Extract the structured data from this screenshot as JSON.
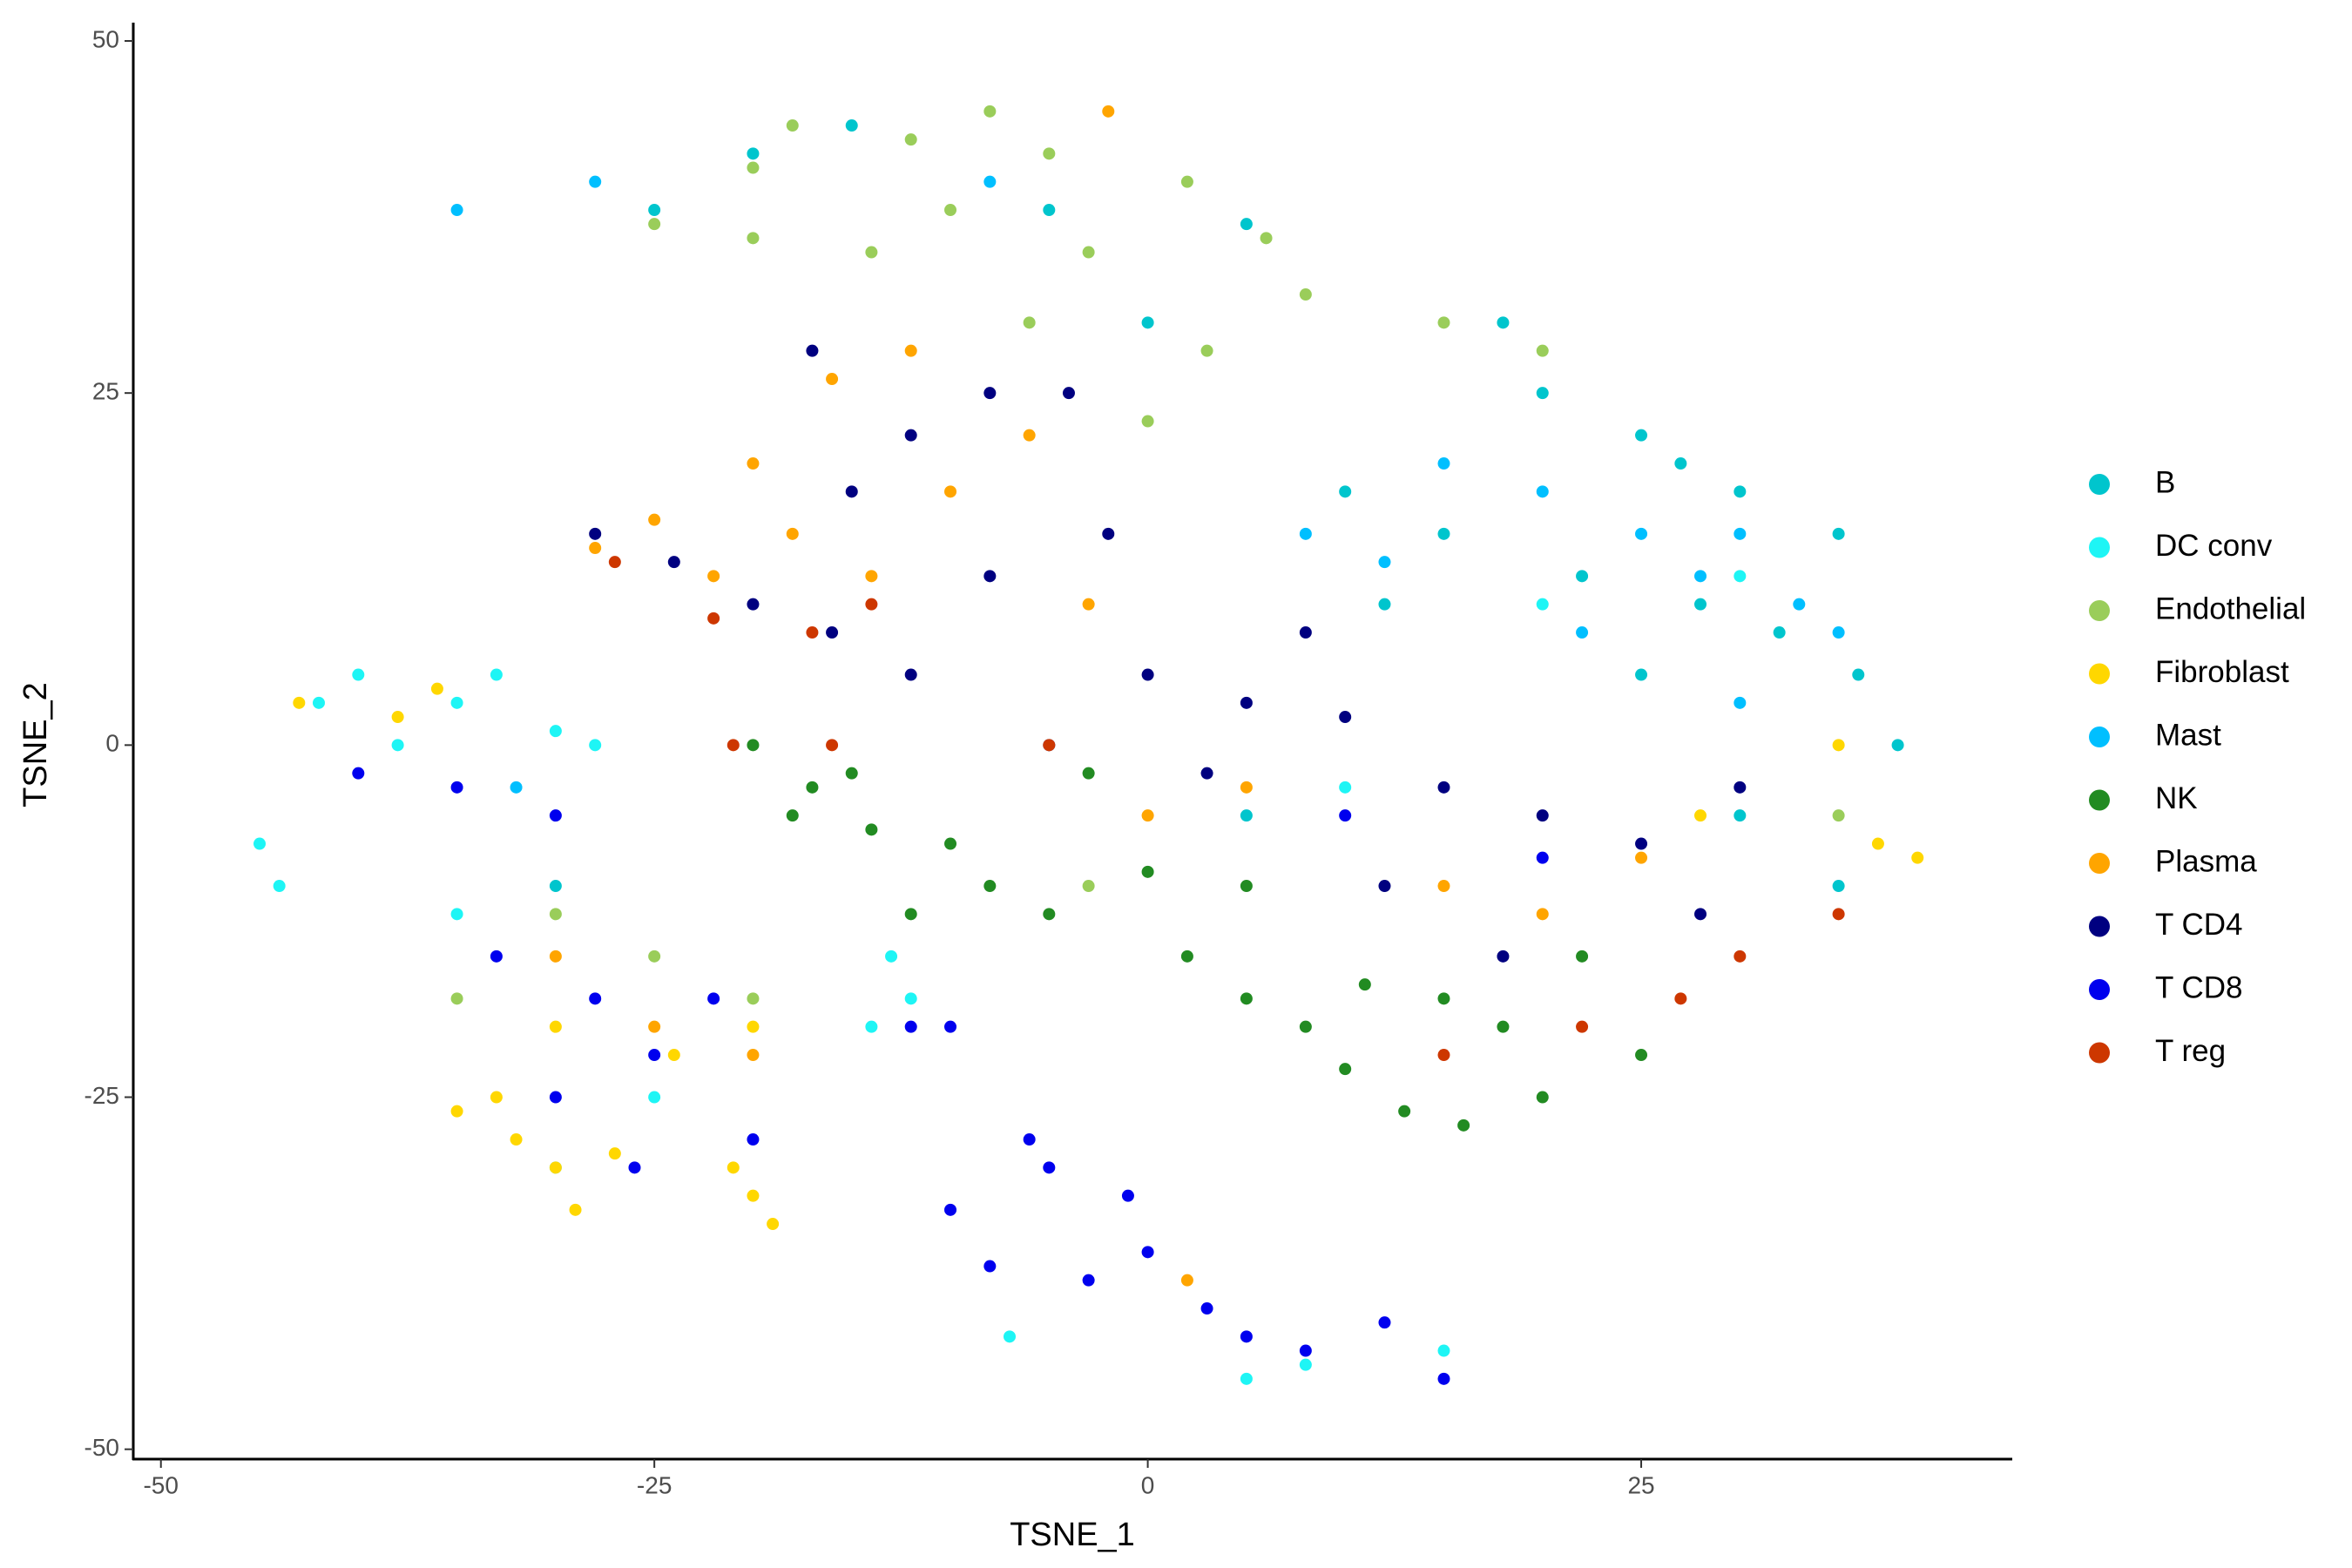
{
  "chart_data": {
    "type": "scatter",
    "x_label": "TSNE_1",
    "y_label": "TSNE_2",
    "xlim": [
      -51.4,
      43.8
    ],
    "ylim": [
      -50.7,
      51.3
    ],
    "xticks": [
      -50,
      -25,
      0,
      25
    ],
    "yticks": [
      -50,
      -25,
      0,
      25,
      50
    ],
    "grid": false,
    "legend": "right",
    "series": [
      {
        "name": "B",
        "color": "#00C5CD",
        "x": [
          20,
          25,
          30,
          35,
          28,
          22,
          15,
          10,
          32,
          36,
          38,
          27,
          18,
          12,
          25,
          -25,
          -20,
          -15,
          -5,
          5,
          0,
          35,
          -30,
          5,
          30
        ],
        "values": [
          25,
          22,
          18,
          15,
          10,
          12,
          15,
          18,
          8,
          5,
          0,
          20,
          30,
          10,
          5,
          38,
          42,
          44,
          38,
          37,
          30,
          -10,
          -10,
          -5,
          -5
        ]
      },
      {
        "name": "DC conv",
        "color": "#1EF5F5",
        "x": [
          -40,
          -35,
          -30,
          -38,
          -42,
          -33,
          -28,
          -45,
          -44,
          -13,
          -12,
          -14,
          -7,
          5,
          8,
          15,
          -25,
          -30,
          -35,
          20,
          30,
          10
        ],
        "values": [
          5,
          3,
          1,
          0,
          3,
          5,
          0,
          -7,
          -10,
          -15,
          -18,
          -20,
          -42,
          -45,
          -44,
          -43,
          -25,
          -30,
          -12,
          10,
          12,
          -3
        ]
      },
      {
        "name": "Endothelial",
        "color": "#9ACD5A",
        "x": [
          -25,
          -20,
          -18,
          -12,
          -8,
          -5,
          -10,
          -3,
          2,
          6,
          3,
          0,
          -6,
          -14,
          -20,
          8,
          15,
          20,
          -25,
          -20,
          -35,
          -30,
          35,
          -3
        ],
        "values": [
          37,
          41,
          44,
          43,
          45,
          42,
          38,
          35,
          40,
          36,
          28,
          23,
          30,
          35,
          36,
          32,
          30,
          28,
          -15,
          -18,
          -18,
          -12,
          -5,
          -10
        ]
      },
      {
        "name": "Fibroblast",
        "color": "#FFD700",
        "x": [
          -35,
          -32,
          -30,
          -29,
          -27,
          -33,
          -20,
          -19,
          -21,
          -24,
          -20,
          -38,
          -43,
          -36,
          -30,
          37,
          39,
          35,
          28
        ],
        "values": [
          -26,
          -28,
          -30,
          -33,
          -29,
          -25,
          -32,
          -34,
          -30,
          -22,
          -20,
          2,
          3,
          4,
          -20,
          -7,
          -8,
          0,
          -5
        ]
      },
      {
        "name": "Mast",
        "color": "#00BFFF",
        "x": [
          30,
          28,
          33,
          25,
          20,
          35,
          15,
          8,
          12,
          22,
          30,
          -28,
          -35,
          -8,
          -32
        ],
        "values": [
          15,
          12,
          10,
          15,
          18,
          8,
          20,
          15,
          13,
          8,
          3,
          40,
          38,
          40,
          -3
        ]
      },
      {
        "name": "NK",
        "color": "#228B22",
        "x": [
          -20,
          -17,
          -14,
          -10,
          -8,
          -5,
          -3,
          0,
          2,
          5,
          8,
          10,
          13,
          16,
          20,
          25,
          22,
          15,
          -15,
          -12,
          -18,
          5,
          18,
          11
        ],
        "values": [
          0,
          -3,
          -6,
          -7,
          -10,
          -12,
          -2,
          -9,
          -15,
          -18,
          -20,
          -23,
          -26,
          -27,
          -25,
          -22,
          -15,
          -18,
          -2,
          -12,
          -5,
          -10,
          -20,
          -17
        ]
      },
      {
        "name": "Plasma",
        "color": "#FFA500",
        "x": [
          -28,
          -25,
          -22,
          -18,
          -14,
          -10,
          -16,
          -20,
          -12,
          -6,
          -3,
          0,
          5,
          15,
          20,
          25,
          -30,
          -25,
          -20,
          2,
          -2
        ],
        "values": [
          14,
          16,
          12,
          15,
          12,
          18,
          26,
          20,
          28,
          22,
          10,
          -5,
          -3,
          -10,
          -12,
          -8,
          -15,
          -20,
          -22,
          -38,
          45
        ]
      },
      {
        "name": "T CD4",
        "color": "#000080",
        "x": [
          -28,
          -24,
          -20,
          -16,
          -12,
          -8,
          -15,
          -12,
          -17,
          -8,
          -4,
          -2,
          0,
          5,
          10,
          15,
          20,
          25,
          30,
          12,
          18,
          28,
          -5,
          3,
          8
        ],
        "values": [
          15,
          13,
          10,
          8,
          5,
          12,
          18,
          22,
          28,
          25,
          25,
          15,
          5,
          3,
          2,
          -3,
          -5,
          -7,
          -3,
          -10,
          -15,
          -12,
          0,
          -2,
          8
        ]
      },
      {
        "name": "T CD8",
        "color": "#0000EE",
        "x": [
          -40,
          -35,
          -30,
          -33,
          -28,
          -25,
          -30,
          -26,
          -20,
          -22,
          -10,
          -5,
          -3,
          0,
          3,
          5,
          8,
          12,
          15,
          -8,
          -6,
          -10,
          10,
          20,
          -1,
          -12
        ],
        "values": [
          -2,
          -3,
          -5,
          -15,
          -18,
          -22,
          -25,
          -30,
          -28,
          -18,
          -33,
          -30,
          -38,
          -36,
          -40,
          -42,
          -43,
          -41,
          -45,
          -37,
          -28,
          -20,
          -5,
          -8,
          -32,
          -20
        ]
      },
      {
        "name": "T reg",
        "color": "#CD3700",
        "x": [
          -27,
          -22,
          -17,
          -14,
          -21,
          -5,
          15,
          22,
          27,
          35,
          -16,
          30
        ],
        "values": [
          13,
          9,
          8,
          10,
          0,
          0,
          -22,
          -20,
          -18,
          -12,
          0,
          -15
        ]
      }
    ]
  }
}
